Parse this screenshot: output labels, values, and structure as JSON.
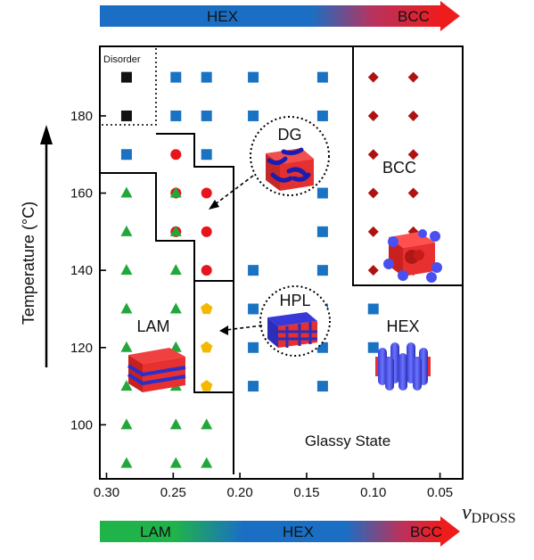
{
  "chart_data": {
    "type": "scatter",
    "title": "",
    "xlabel": "v",
    "xlabel_subscript": "DPOSS",
    "ylabel": "Temperature (°C)",
    "xlim": [
      0.305,
      0.033
    ],
    "ylim": [
      86,
      198
    ],
    "x_reversed": true,
    "grid": false,
    "x_ticks": [
      0.3,
      0.25,
      0.2,
      0.15,
      0.1,
      0.05
    ],
    "x_tick_labels": [
      "0.30",
      "0.25",
      "0.20",
      "0.15",
      "0.10",
      "0.05"
    ],
    "y_ticks": [
      100,
      120,
      140,
      160,
      180
    ],
    "y_tick_labels": [
      "100",
      "120",
      "140",
      "160",
      "180"
    ],
    "top_bar": {
      "labels": [
        "HEX",
        "BCC"
      ],
      "colors": [
        "#1a6fc4",
        "#e51b1b"
      ]
    },
    "bottom_bar": {
      "labels": [
        "LAM",
        "HEX",
        "BCC"
      ],
      "colors": [
        "#20b34a",
        "#1a6fc4",
        "#e51b1b"
      ]
    },
    "region_labels": {
      "disorder": "Disorder",
      "dg": "DG",
      "bcc": "BCC",
      "hpl": "HPL",
      "lam": "LAM",
      "hex": "HEX",
      "glassy": "Glassy State"
    },
    "series": [
      {
        "name": "Disorder",
        "marker": "square",
        "color": "#111111",
        "points": [
          [
            0.285,
            190
          ],
          [
            0.285,
            180
          ]
        ]
      },
      {
        "name": "HEX",
        "marker": "square",
        "color": "#1a73c2",
        "points": [
          [
            0.248,
            190
          ],
          [
            0.225,
            190
          ],
          [
            0.19,
            190
          ],
          [
            0.138,
            190
          ],
          [
            0.248,
            180
          ],
          [
            0.225,
            180
          ],
          [
            0.19,
            180
          ],
          [
            0.138,
            180
          ],
          [
            0.285,
            170
          ],
          [
            0.225,
            170
          ],
          [
            0.138,
            170
          ],
          [
            0.138,
            160
          ],
          [
            0.138,
            150
          ],
          [
            0.19,
            140
          ],
          [
            0.138,
            140
          ],
          [
            0.19,
            130
          ],
          [
            0.138,
            130
          ],
          [
            0.1,
            130
          ],
          [
            0.19,
            120
          ],
          [
            0.138,
            120
          ],
          [
            0.1,
            120
          ],
          [
            0.19,
            110
          ],
          [
            0.138,
            110
          ]
        ]
      },
      {
        "name": "DG",
        "marker": "circle",
        "color": "#e8141c",
        "points": [
          [
            0.248,
            170
          ],
          [
            0.248,
            160
          ],
          [
            0.225,
            160
          ],
          [
            0.248,
            150
          ],
          [
            0.225,
            150
          ],
          [
            0.225,
            140
          ]
        ]
      },
      {
        "name": "BCC",
        "marker": "diamond",
        "color": "#b01212",
        "points": [
          [
            0.1,
            190
          ],
          [
            0.07,
            190
          ],
          [
            0.1,
            180
          ],
          [
            0.07,
            180
          ],
          [
            0.1,
            170
          ],
          [
            0.07,
            170
          ],
          [
            0.1,
            160
          ],
          [
            0.07,
            160
          ],
          [
            0.1,
            150
          ],
          [
            0.07,
            150
          ],
          [
            0.1,
            140
          ],
          [
            0.07,
            140
          ]
        ]
      },
      {
        "name": "HPL",
        "marker": "pentagon",
        "color": "#f5b800",
        "points": [
          [
            0.225,
            130
          ],
          [
            0.225,
            120
          ],
          [
            0.225,
            110
          ]
        ]
      },
      {
        "name": "LAM",
        "marker": "triangle",
        "color": "#22a83a",
        "points": [
          [
            0.285,
            160
          ],
          [
            0.248,
            160
          ],
          [
            0.285,
            150
          ],
          [
            0.248,
            150
          ],
          [
            0.285,
            140
          ],
          [
            0.248,
            140
          ],
          [
            0.285,
            130
          ],
          [
            0.248,
            130
          ],
          [
            0.285,
            120
          ],
          [
            0.248,
            120
          ],
          [
            0.285,
            110
          ],
          [
            0.248,
            110
          ],
          [
            0.285,
            100
          ],
          [
            0.248,
            100
          ],
          [
            0.225,
            100
          ],
          [
            0.285,
            90
          ],
          [
            0.248,
            90
          ],
          [
            0.225,
            90
          ]
        ]
      }
    ]
  }
}
